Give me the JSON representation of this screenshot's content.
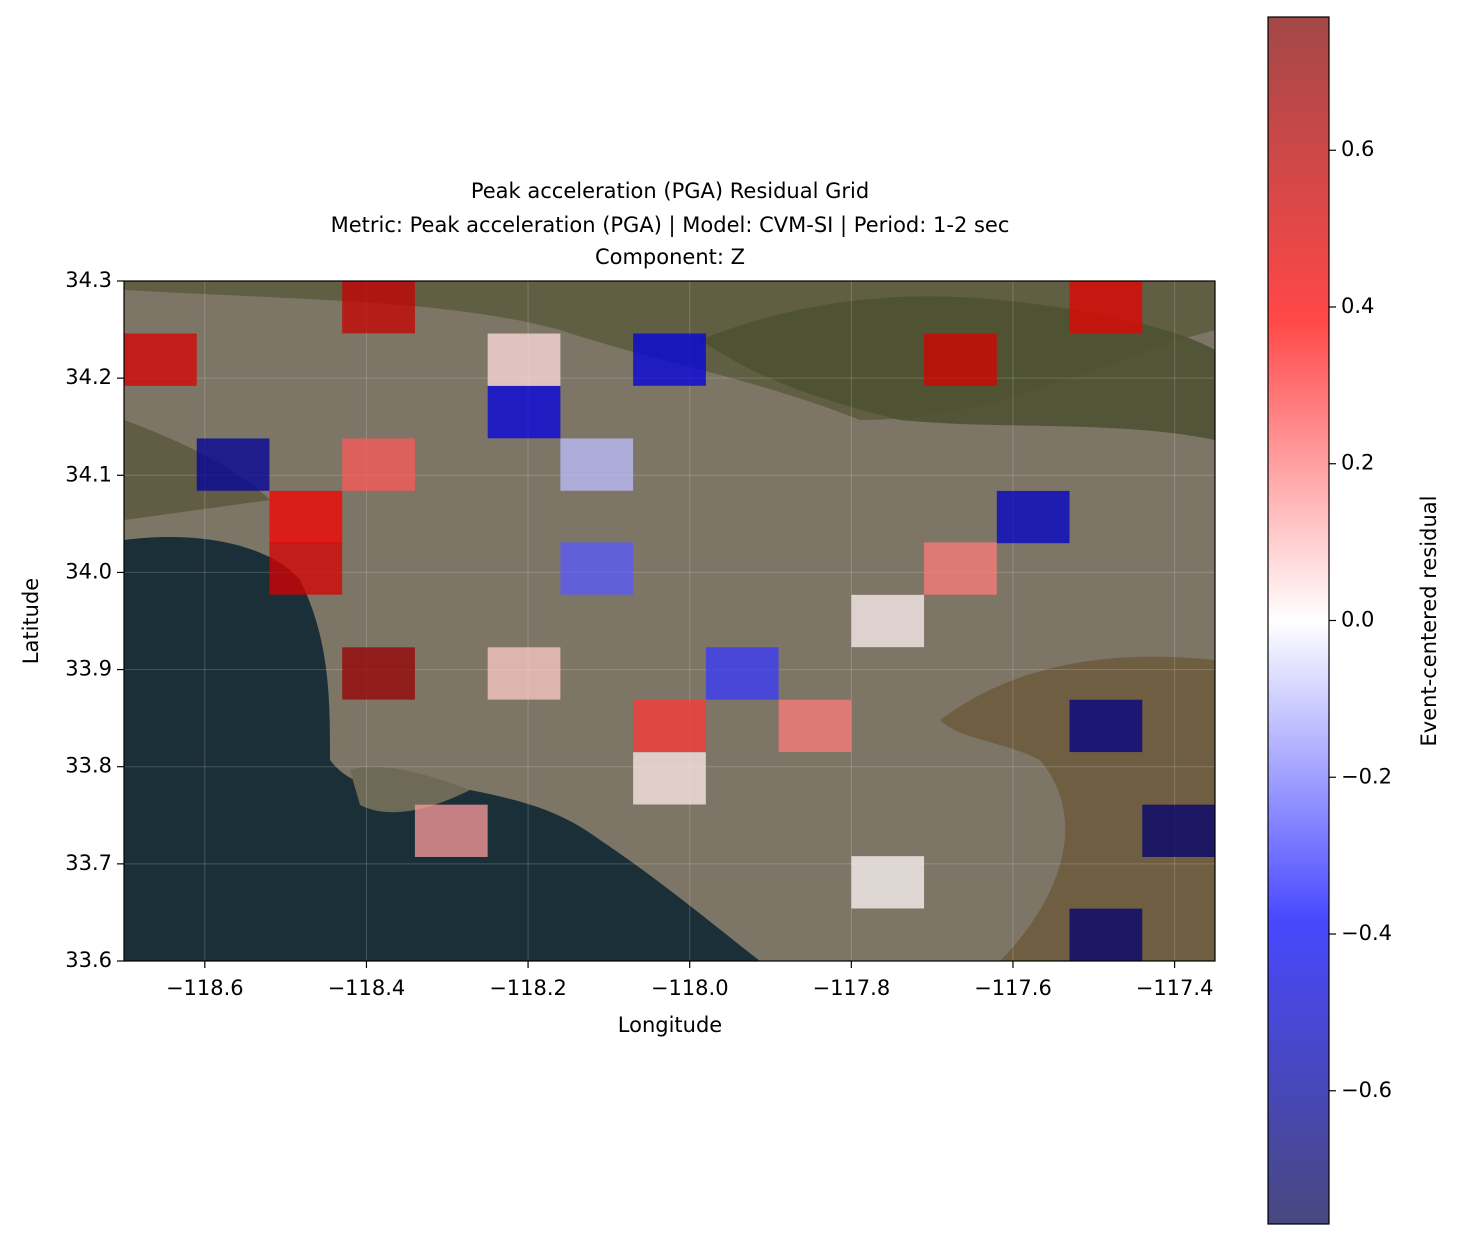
{
  "chart_data": {
    "type": "heatmap",
    "title": "Peak acceleration (PGA) Residual Grid",
    "subtitle": [
      "Metric: Peak acceleration (PGA) | Model: CVM-SI | Period: 1-2 sec",
      "Component: Z"
    ],
    "x_label": "Longitude",
    "y_label": "Latitude",
    "colorbar_label": "Event-centered residual",
    "xlim": [
      -118.7,
      -117.35
    ],
    "ylim": [
      33.6,
      34.3
    ],
    "xticks": [
      {
        "value": -118.6,
        "label": "−118.6"
      },
      {
        "value": -118.4,
        "label": "−118.4"
      },
      {
        "value": -118.2,
        "label": "−118.2"
      },
      {
        "value": -118.0,
        "label": "−118.0"
      },
      {
        "value": -117.8,
        "label": "−117.8"
      },
      {
        "value": -117.6,
        "label": "−117.6"
      },
      {
        "value": -117.4,
        "label": "−117.4"
      }
    ],
    "yticks": [
      {
        "value": 33.6,
        "label": "33.6"
      },
      33.7,
      33.8,
      33.9,
      {
        "value": 34.0,
        "label": "34.0"
      },
      34.1,
      34.2,
      34.3
    ],
    "grid": true,
    "colormap": "seismic",
    "clim": [
      -0.77,
      0.77
    ],
    "cticks": [
      {
        "value": -0.6,
        "label": "−0.6"
      },
      {
        "value": -0.4,
        "label": "−0.4"
      },
      {
        "value": -0.2,
        "label": "−0.2"
      },
      {
        "value": 0.0,
        "label": "0.0"
      },
      0.2,
      0.4,
      0.6
    ],
    "x": [
      -118.385,
      -117.485,
      -118.655,
      -118.205,
      -118.025,
      -117.665,
      -118.205,
      -118.565,
      -118.385,
      -118.115,
      -118.475,
      -117.575,
      -118.475,
      -118.115,
      -117.665,
      -117.755,
      -118.385,
      -118.205,
      -117.935,
      -118.025,
      -117.845,
      -117.485,
      -118.025,
      -118.295,
      -117.395,
      -117.755,
      -117.485
    ],
    "y": [
      34.273,
      34.273,
      34.219,
      34.219,
      34.219,
      34.219,
      34.165,
      34.111,
      34.111,
      34.111,
      34.057,
      34.057,
      34.004,
      34.004,
      34.004,
      33.95,
      33.896,
      33.896,
      33.896,
      33.842,
      33.842,
      33.842,
      33.788,
      33.734,
      33.734,
      33.681,
      33.627
    ],
    "values": [
      0.55,
      0.45,
      0.5,
      0.05,
      -0.45,
      0.5,
      -0.45,
      -0.6,
      0.25,
      -0.1,
      0.4,
      -0.5,
      0.5,
      -0.25,
      0.2,
      0.02,
      0.7,
      0.08,
      -0.3,
      0.3,
      0.2,
      -0.65,
      0.03,
      0.15,
      -0.7,
      0.01,
      -0.7
    ]
  }
}
